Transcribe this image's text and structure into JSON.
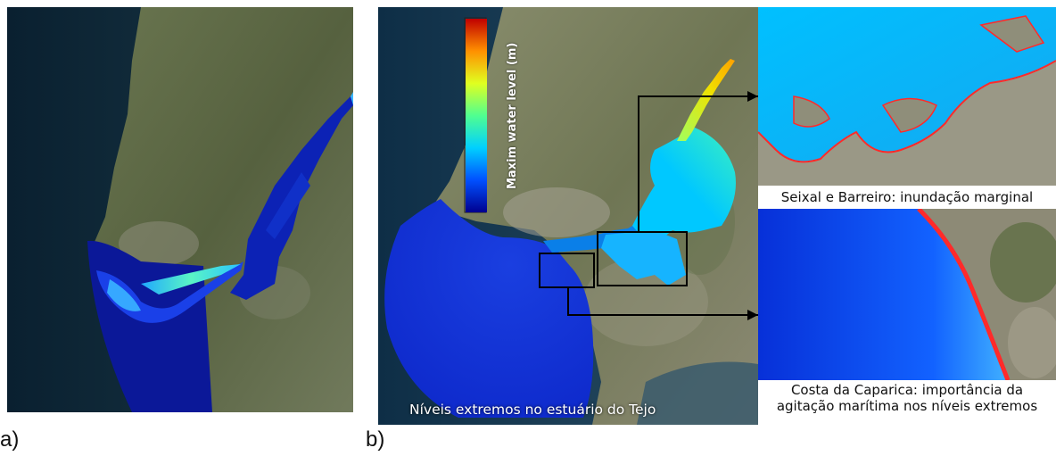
{
  "panels": {
    "a": {
      "label": "a)"
    },
    "b": {
      "label": "b)",
      "map_caption": "Níveis extremos no estuário do Tejo",
      "colorbar": {
        "title": "Maxim water level (m)",
        "colormap": "jet",
        "colors": [
          "#00008f",
          "#0050ff",
          "#00d0ff",
          "#50ff90",
          "#e0ff20",
          "#ff9000",
          "#c00000"
        ]
      },
      "insets": [
        {
          "caption": "Seixal e Barreiro: inundação marginal"
        },
        {
          "caption_line1": "Costa da Caparica: importância da",
          "caption_line2": "agitação marítima nos níveis extremos"
        }
      ]
    }
  },
  "colors": {
    "deep_sea": "#0d2a3c",
    "land": "#5b6a4a",
    "flood_dark": "#0a20a8",
    "flood_mid": "#1844f0",
    "estuary_highlight": "#59f5c7",
    "inundation_edge": "#ff2a2a"
  }
}
